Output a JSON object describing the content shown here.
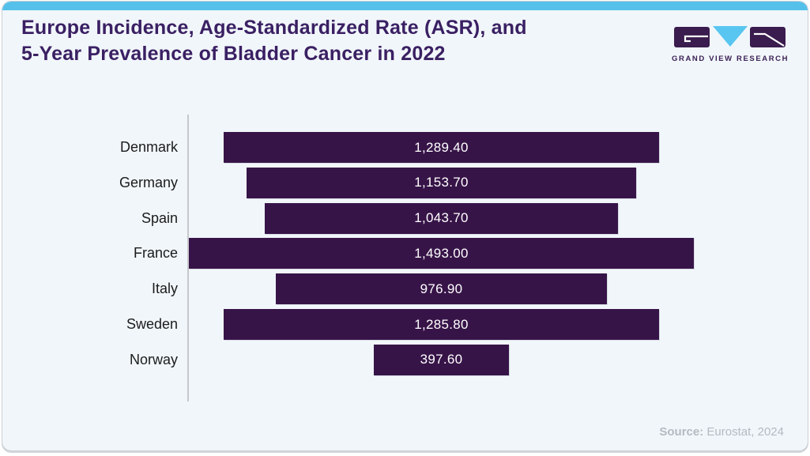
{
  "header": {
    "title_line1": "Europe Incidence, Age-Standardized Rate (ASR), and",
    "title_line2": "5-Year Prevalence of Bladder Cancer in 2022"
  },
  "logo": {
    "text": "GRAND VIEW RESEARCH"
  },
  "footer": {
    "source_label": "Source:",
    "source_value": "Eurostat, 2024"
  },
  "colors": {
    "bar_purple": "#371448",
    "title_purple": "#3a2063",
    "accent_cyan": "#55c1ea",
    "logo_cyan": "#58c6f0",
    "card_background": "#f1f6fa",
    "source_gray": "#b4bac2"
  },
  "chart_data": {
    "type": "bar",
    "orientation": "horizontal",
    "alignment": "center",
    "title": "Europe Incidence, Age-Standardized Rate (ASR), and 5-Year Prevalence of Bladder Cancer in 2022",
    "categories": [
      "Denmark",
      "Germany",
      "Spain",
      "France",
      "Italy",
      "Sweden",
      "Norway"
    ],
    "values": [
      1289.4,
      1153.7,
      1043.7,
      1493.0,
      976.9,
      1285.8,
      397.6
    ],
    "value_labels": [
      "1,289.40",
      "1,153.70",
      "1,043.70",
      "1,493.00",
      "976.90",
      "1,285.80",
      "397.60"
    ],
    "xlabel": "",
    "ylabel": "",
    "legend": false,
    "grid": false,
    "value_range": [
      0,
      1493
    ],
    "source": "Eurostat, 2024"
  }
}
